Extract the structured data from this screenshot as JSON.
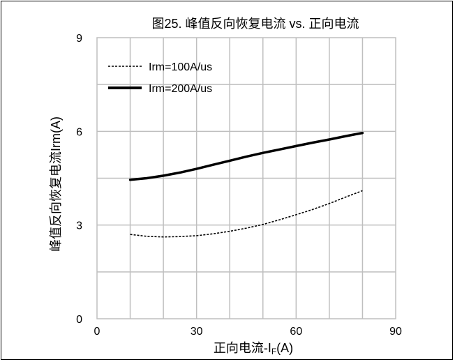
{
  "chart_data": {
    "type": "line",
    "title": "图25. 峰值反向恢复电流 vs. 正向电流",
    "xlabel": "正向电流-I",
    "xlabel_sub": "F",
    "xlabel_suffix": "(A)",
    "ylabel": "峰值反向恢复电流Irm(A)",
    "xlim": [
      0,
      90
    ],
    "ylim": [
      0,
      9
    ],
    "xticks": [
      0,
      30,
      60,
      90
    ],
    "yticks": [
      0,
      3,
      6,
      9
    ],
    "xtick_labels": [
      "0",
      "30",
      "60",
      "90"
    ],
    "ytick_labels": [
      "0",
      "3",
      "6",
      "9"
    ],
    "grid": true,
    "legend_position": "top-left",
    "series": [
      {
        "name": "Irm=100A/us",
        "style": "dotted",
        "color": "#000000",
        "x": [
          10,
          15,
          20,
          25,
          30,
          35,
          40,
          45,
          50,
          55,
          60,
          65,
          70,
          75,
          80
        ],
        "y": [
          2.7,
          2.64,
          2.62,
          2.63,
          2.66,
          2.72,
          2.8,
          2.9,
          3.02,
          3.17,
          3.33,
          3.5,
          3.69,
          3.9,
          4.1
        ]
      },
      {
        "name": "Irm=200A/us",
        "style": "solid",
        "color": "#000000",
        "x": [
          10,
          15,
          20,
          25,
          30,
          35,
          40,
          45,
          50,
          55,
          60,
          65,
          70,
          75,
          80
        ],
        "y": [
          4.45,
          4.5,
          4.58,
          4.68,
          4.8,
          4.93,
          5.06,
          5.19,
          5.31,
          5.42,
          5.53,
          5.64,
          5.74,
          5.85,
          5.95
        ]
      }
    ]
  }
}
